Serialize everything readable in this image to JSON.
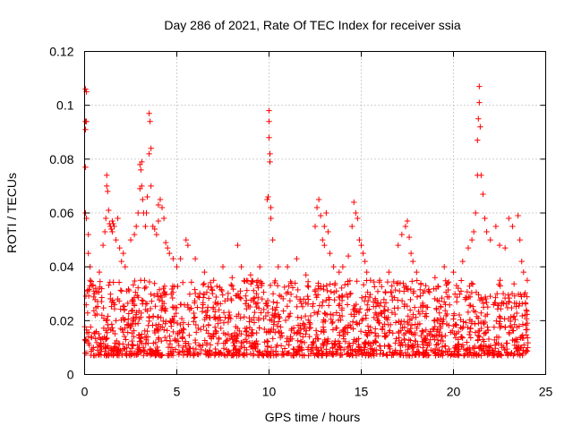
{
  "chart_data": {
    "type": "scatter",
    "title": "Day 286 of 2021, Rate Of TEC Index for receiver ssia",
    "xlabel": "GPS time / hours",
    "ylabel": "ROTI / TECUs",
    "xlim": [
      0,
      25
    ],
    "ylim": [
      0,
      0.12
    ],
    "x_ticks": [
      0,
      5,
      10,
      15,
      20,
      25
    ],
    "y_ticks": [
      0,
      0.02,
      0.04,
      0.06,
      0.08,
      0.1,
      0.12
    ],
    "x_tick_labels": [
      "0",
      "5",
      "10",
      "15",
      "20",
      "25"
    ],
    "y_tick_labels": [
      "0",
      "0.02",
      "0.04",
      "0.06",
      "0.08",
      "0.1",
      "0.12"
    ],
    "grid": true,
    "marker": "+",
    "series": [
      {
        "name": "ROTI",
        "color": "#ff0000",
        "baseline_range": [
          0.007,
          0.035
        ],
        "x": [
          0.05,
          0.05,
          0.05,
          0.05,
          0.05,
          0.1,
          0.1,
          0.1,
          0.2,
          0.2,
          0.3,
          0.3,
          0.4,
          0.5,
          0.6,
          0.8,
          1.0,
          1.1,
          1.15,
          1.2,
          1.2,
          1.25,
          1.3,
          1.35,
          1.4,
          1.45,
          1.5,
          1.5,
          1.55,
          1.6,
          1.7,
          1.8,
          1.9,
          2.0,
          2.1,
          2.2,
          2.5,
          2.7,
          2.8,
          2.9,
          3.0,
          3.0,
          3.05,
          3.1,
          3.1,
          3.15,
          3.2,
          3.3,
          3.35,
          3.4,
          3.5,
          3.5,
          3.55,
          3.6,
          3.6,
          3.7,
          3.8,
          3.9,
          4.0,
          4.0,
          4.1,
          4.2,
          4.3,
          4.4,
          4.5,
          4.6,
          4.8,
          5.0,
          5.2,
          5.5,
          5.6,
          6.0,
          6.5,
          7.0,
          7.5,
          8.0,
          8.3,
          8.5,
          9.0,
          9.5,
          9.9,
          9.95,
          10.0,
          10.0,
          10.0,
          10.05,
          10.05,
          10.1,
          10.1,
          10.2,
          10.5,
          11.0,
          11.5,
          12.0,
          12.5,
          12.6,
          12.7,
          12.8,
          12.9,
          13.0,
          13.0,
          13.1,
          13.2,
          13.3,
          13.5,
          13.8,
          14.0,
          14.3,
          14.5,
          14.6,
          14.7,
          14.8,
          14.9,
          15.0,
          15.1,
          15.2,
          15.3,
          15.5,
          16.0,
          16.5,
          17.0,
          17.2,
          17.4,
          17.5,
          17.6,
          17.7,
          17.8,
          18.0,
          18.5,
          19.0,
          19.5,
          20.0,
          20.5,
          20.8,
          21.0,
          21.1,
          21.2,
          21.3,
          21.3,
          21.35,
          21.4,
          21.4,
          21.45,
          21.5,
          21.6,
          21.7,
          21.8,
          22.0,
          22.3,
          22.5,
          22.8,
          23.0,
          23.2,
          23.5,
          23.6,
          23.7,
          23.8,
          24.0
        ],
        "y": [
          0.106,
          0.094,
          0.091,
          0.077,
          0.06,
          0.105,
          0.094,
          0.058,
          0.052,
          0.045,
          0.04,
          0.035,
          0.033,
          0.031,
          0.032,
          0.038,
          0.048,
          0.053,
          0.058,
          0.07,
          0.074,
          0.068,
          0.061,
          0.056,
          0.055,
          0.054,
          0.053,
          0.057,
          0.056,
          0.055,
          0.05,
          0.058,
          0.047,
          0.042,
          0.045,
          0.04,
          0.05,
          0.052,
          0.055,
          0.06,
          0.069,
          0.078,
          0.076,
          0.07,
          0.079,
          0.065,
          0.06,
          0.055,
          0.06,
          0.066,
          0.082,
          0.097,
          0.094,
          0.084,
          0.07,
          0.055,
          0.054,
          0.052,
          0.057,
          0.063,
          0.065,
          0.062,
          0.058,
          0.049,
          0.047,
          0.045,
          0.043,
          0.04,
          0.043,
          0.05,
          0.048,
          0.043,
          0.038,
          0.035,
          0.04,
          0.036,
          0.048,
          0.04,
          0.037,
          0.04,
          0.065,
          0.066,
          0.098,
          0.094,
          0.088,
          0.082,
          0.079,
          0.062,
          0.058,
          0.05,
          0.04,
          0.04,
          0.043,
          0.037,
          0.055,
          0.062,
          0.065,
          0.059,
          0.05,
          0.048,
          0.055,
          0.06,
          0.053,
          0.045,
          0.04,
          0.038,
          0.04,
          0.044,
          0.055,
          0.064,
          0.06,
          0.058,
          0.05,
          0.048,
          0.045,
          0.042,
          0.038,
          0.035,
          0.035,
          0.038,
          0.048,
          0.052,
          0.055,
          0.057,
          0.051,
          0.045,
          0.042,
          0.038,
          0.033,
          0.036,
          0.04,
          0.038,
          0.042,
          0.047,
          0.05,
          0.053,
          0.06,
          0.074,
          0.087,
          0.095,
          0.101,
          0.107,
          0.092,
          0.074,
          0.067,
          0.058,
          0.053,
          0.05,
          0.055,
          0.048,
          0.047,
          0.058,
          0.055,
          0.059,
          0.05,
          0.042,
          0.038,
          0.035
        ]
      }
    ]
  }
}
